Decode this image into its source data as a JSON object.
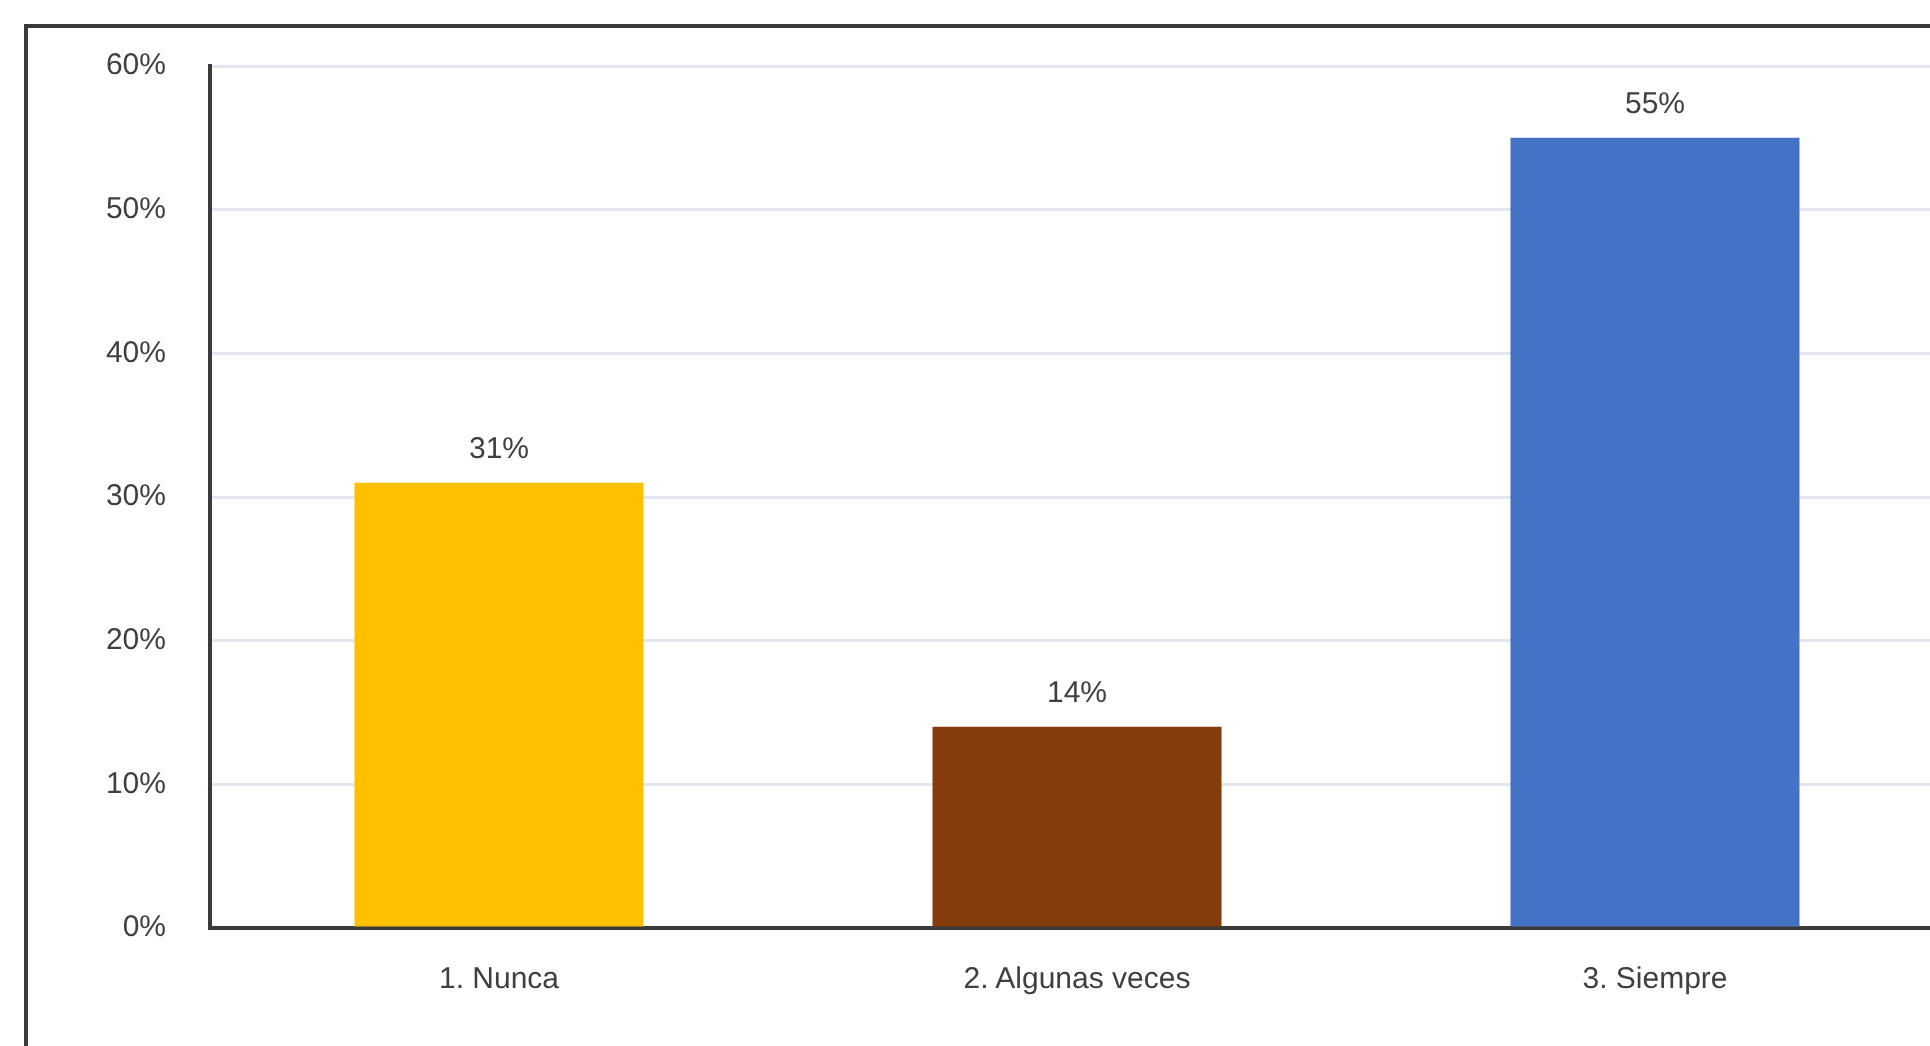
{
  "chart_data": {
    "type": "bar",
    "categories": [
      "1. Nunca",
      "2. Algunas veces",
      "3. Siempre"
    ],
    "values": [
      31,
      14,
      55
    ],
    "colors": [
      "#ffc000",
      "#843c0c",
      "#4472c4"
    ],
    "value_labels": [
      "31%",
      "14%",
      "55%"
    ],
    "ylim": [
      0,
      60
    ],
    "yticks": [
      {
        "value": 0,
        "label": "0%"
      },
      {
        "value": 10,
        "label": "10%"
      },
      {
        "value": 20,
        "label": "20%"
      },
      {
        "value": 30,
        "label": "30%"
      },
      {
        "value": 40,
        "label": "40%"
      },
      {
        "value": 50,
        "label": "50%"
      },
      {
        "value": 60,
        "label": "60%"
      }
    ],
    "grid": "y"
  }
}
